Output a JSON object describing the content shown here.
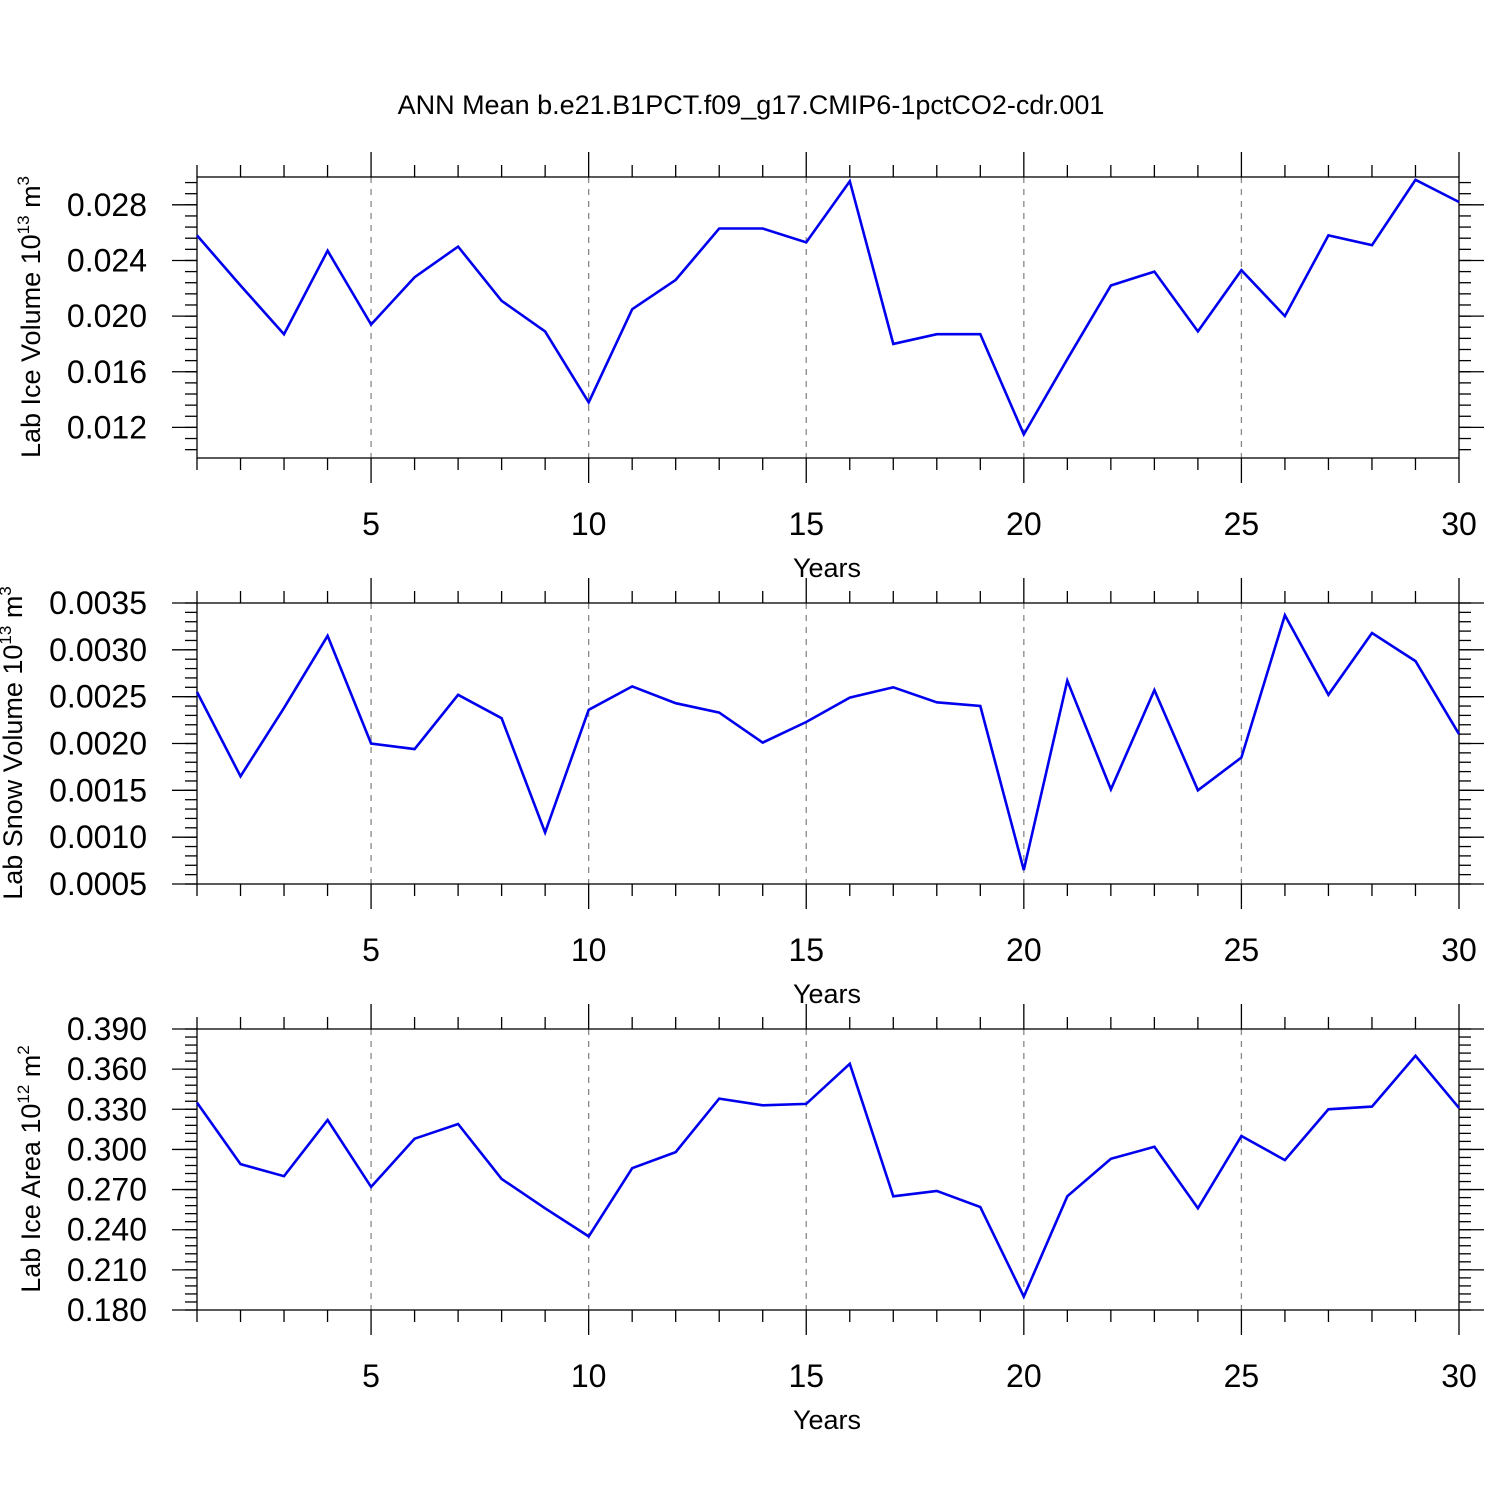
{
  "title": "ANN Mean b.e21.B1PCT.f09_g17.CMIP6-1pctCO2-cdr.001",
  "colors": {
    "line": "#0000ee",
    "axis": "#000000",
    "grid": "#888888"
  },
  "chart_data": [
    {
      "type": "line",
      "ylabel": {
        "text": "Lab Ice Volume 10",
        "exp": "13",
        "unit": " m",
        "unit_exp": "3"
      },
      "xlabel": "Years",
      "xlim": [
        1,
        30
      ],
      "xticks": [
        5,
        10,
        15,
        20,
        25,
        30
      ],
      "ylim": [
        0.0098,
        0.03
      ],
      "yticks": [
        0.012,
        0.016,
        0.02,
        0.024,
        0.028
      ],
      "ytick_labels": [
        "0.012",
        "0.016",
        "0.020",
        "0.024",
        "0.028"
      ],
      "yminor_step": 0.0008,
      "grid": "vertical dashed at major x ticks",
      "x": [
        1,
        2,
        3,
        4,
        5,
        6,
        7,
        8,
        9,
        10,
        11,
        12,
        13,
        14,
        15,
        16,
        17,
        18,
        19,
        20,
        21,
        22,
        23,
        24,
        25,
        26,
        27,
        28,
        29,
        30
      ],
      "y": [
        0.0258,
        0.0222,
        0.0187,
        0.0247,
        0.0194,
        0.0228,
        0.025,
        0.0211,
        0.0189,
        0.0138,
        0.0205,
        0.0226,
        0.0263,
        0.0263,
        0.0253,
        0.0297,
        0.018,
        0.0187,
        0.0187,
        0.0115,
        0.0169,
        0.0222,
        0.0232,
        0.0189,
        0.0233,
        0.02,
        0.0258,
        0.0251,
        0.0298,
        0.0282
      ]
    },
    {
      "type": "line",
      "ylabel": {
        "text": "Lab Snow Volume 10",
        "exp": "13",
        "unit": " m",
        "unit_exp": "3"
      },
      "xlabel": "Years",
      "xlim": [
        1,
        30
      ],
      "xticks": [
        5,
        10,
        15,
        20,
        25,
        30
      ],
      "ylim": [
        0.0005,
        0.0035
      ],
      "yticks": [
        0.0005,
        0.001,
        0.0015,
        0.002,
        0.0025,
        0.003,
        0.0035
      ],
      "ytick_labels": [
        "0.0005",
        "0.0010",
        "0.0015",
        "0.0020",
        "0.0025",
        "0.0030",
        "0.0035"
      ],
      "yminor_step": 0.0001,
      "grid": "vertical dashed at major x ticks",
      "x": [
        1,
        2,
        3,
        4,
        5,
        6,
        7,
        8,
        9,
        10,
        11,
        12,
        13,
        14,
        15,
        16,
        17,
        18,
        19,
        20,
        21,
        22,
        23,
        24,
        25,
        26,
        27,
        28,
        29,
        30
      ],
      "y": [
        0.00255,
        0.00165,
        0.00238,
        0.00315,
        0.002,
        0.00194,
        0.00252,
        0.00227,
        0.00105,
        0.00236,
        0.00261,
        0.00243,
        0.00233,
        0.00201,
        0.00223,
        0.00249,
        0.0026,
        0.00244,
        0.0024,
        0.00065,
        0.00267,
        0.00151,
        0.00257,
        0.0015,
        0.00185,
        0.00337,
        0.00252,
        0.00318,
        0.00288,
        0.0021
      ]
    },
    {
      "type": "line",
      "ylabel": {
        "text": "Lab Ice Area 10",
        "exp": "12",
        "unit": " m",
        "unit_exp": "2"
      },
      "xlabel": "Years",
      "xlim": [
        1,
        30
      ],
      "xticks": [
        5,
        10,
        15,
        20,
        25,
        30
      ],
      "ylim": [
        0.18,
        0.39
      ],
      "yticks": [
        0.18,
        0.21,
        0.24,
        0.27,
        0.3,
        0.33,
        0.36,
        0.39
      ],
      "ytick_labels": [
        "0.180",
        "0.210",
        "0.240",
        "0.270",
        "0.300",
        "0.330",
        "0.360",
        "0.390"
      ],
      "yminor_step": 0.006,
      "grid": "vertical dashed at major x ticks",
      "x": [
        1,
        2,
        3,
        4,
        5,
        6,
        7,
        8,
        9,
        10,
        11,
        12,
        13,
        14,
        15,
        16,
        17,
        18,
        19,
        20,
        21,
        22,
        23,
        24,
        25,
        26,
        27,
        28,
        29,
        30
      ],
      "y": [
        0.335,
        0.289,
        0.28,
        0.322,
        0.272,
        0.308,
        0.319,
        0.278,
        0.256,
        0.235,
        0.286,
        0.298,
        0.338,
        0.333,
        0.334,
        0.364,
        0.265,
        0.269,
        0.257,
        0.19,
        0.265,
        0.293,
        0.302,
        0.256,
        0.31,
        0.292,
        0.33,
        0.332,
        0.37,
        0.331
      ]
    }
  ]
}
